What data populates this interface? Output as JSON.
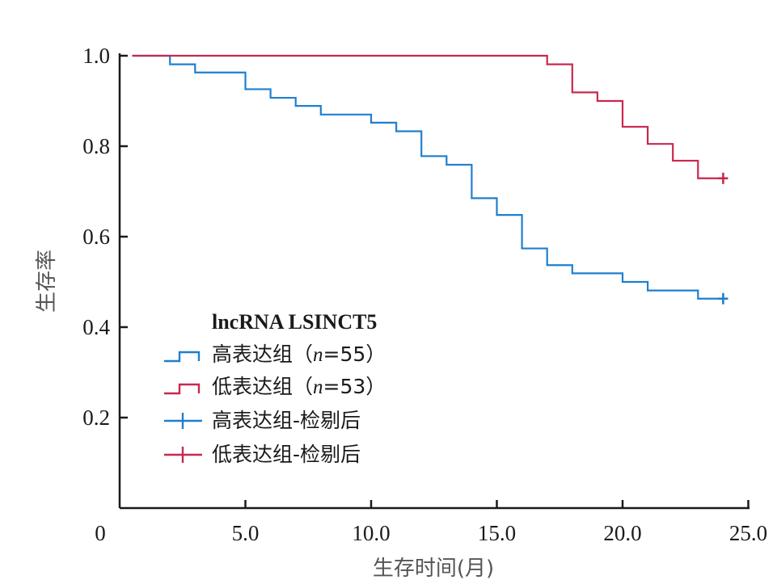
{
  "chart_data": {
    "type": "line",
    "subtype": "kaplan-meier",
    "title": "",
    "xlabel": "生存时间(月)",
    "ylabel": "生存率",
    "xlim": [
      0,
      25
    ],
    "ylim": [
      0,
      1.0
    ],
    "x_ticks": [
      {
        "value": 0,
        "label": "0"
      },
      {
        "value": 5,
        "label": "5.0"
      },
      {
        "value": 10,
        "label": "10.0"
      },
      {
        "value": 15,
        "label": "15.0"
      },
      {
        "value": 20,
        "label": "20.0"
      },
      {
        "value": 25,
        "label": "25.0"
      }
    ],
    "y_ticks": [
      {
        "value": 0.2,
        "label": "0.2"
      },
      {
        "value": 0.4,
        "label": "0.4"
      },
      {
        "value": 0.6,
        "label": "0.6"
      },
      {
        "value": 0.8,
        "label": "0.8"
      },
      {
        "value": 1.0,
        "label": "1.0"
      }
    ],
    "legend": {
      "title": "lncRNA LSINCT5",
      "placement": "lower-left",
      "entries": [
        {
          "label_main": "高表达组",
          "label_n": "n",
          "label_rest": "=55）",
          "label_open": "（",
          "color": "#1f7fcf",
          "kind": "step"
        },
        {
          "label_main": "低表达组",
          "label_n": "n",
          "label_rest": "=53）",
          "label_open": "（",
          "color": "#c8284f",
          "kind": "step"
        },
        {
          "label_full": "高表达组-检剔后",
          "color": "#1f7fcf",
          "kind": "censor"
        },
        {
          "label_full": "低表达组-检剔后",
          "color": "#c8284f",
          "kind": "censor"
        }
      ]
    },
    "series": [
      {
        "name": "高表达组",
        "color": "#1f7fcf",
        "steps": [
          [
            0,
            1.0
          ],
          [
            2.0,
            0.981
          ],
          [
            3.0,
            0.963
          ],
          [
            5.0,
            0.926
          ],
          [
            6.0,
            0.907
          ],
          [
            7.0,
            0.889
          ],
          [
            8.0,
            0.87
          ],
          [
            10.0,
            0.852
          ],
          [
            11.0,
            0.833
          ],
          [
            12.0,
            0.778
          ],
          [
            13.0,
            0.759
          ],
          [
            14.0,
            0.685
          ],
          [
            15.0,
            0.648
          ],
          [
            16.0,
            0.574
          ],
          [
            17.0,
            0.537
          ],
          [
            18.0,
            0.519
          ],
          [
            20.0,
            0.5
          ],
          [
            21.0,
            0.481
          ],
          [
            23.0,
            0.463
          ],
          [
            24.0,
            0.463
          ]
        ],
        "censored": [
          [
            24.0,
            0.463
          ]
        ]
      },
      {
        "name": "低表达组",
        "color": "#c8284f",
        "steps": [
          [
            0,
            1.0
          ],
          [
            17.0,
            0.981
          ],
          [
            18.0,
            0.919
          ],
          [
            19.0,
            0.9
          ],
          [
            20.0,
            0.843
          ],
          [
            21.0,
            0.805
          ],
          [
            22.0,
            0.768
          ],
          [
            23.0,
            0.729
          ],
          [
            24.0,
            0.729
          ]
        ],
        "censored": [
          [
            24.0,
            0.729
          ]
        ]
      }
    ]
  }
}
